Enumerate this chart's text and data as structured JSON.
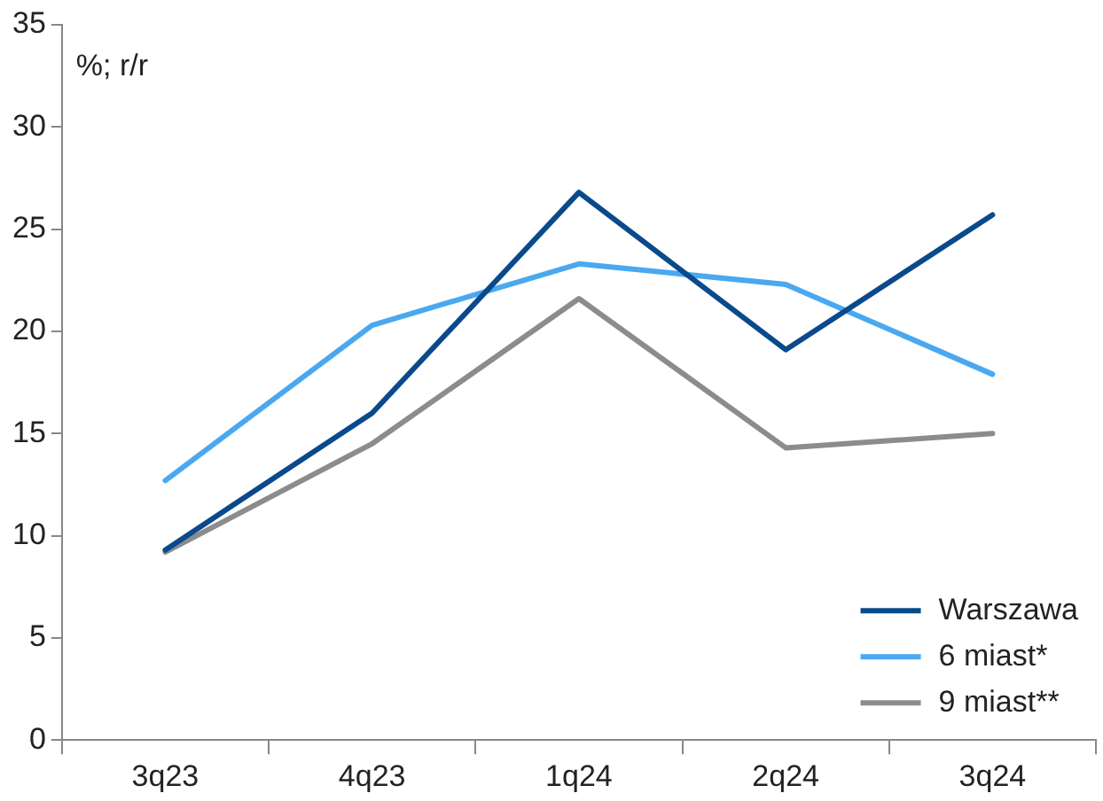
{
  "chart_data": {
    "type": "line",
    "ylabel": "%; r/r",
    "categories": [
      "3q23",
      "4q23",
      "1q24",
      "2q24",
      "3q24"
    ],
    "series": [
      {
        "name": "Warszawa",
        "color": "#0a4a8c",
        "values": [
          9.3,
          16.0,
          26.8,
          19.1,
          25.7
        ]
      },
      {
        "name": "6 miast*",
        "color": "#4aa8f0",
        "values": [
          12.7,
          20.3,
          23.3,
          22.3,
          17.9
        ]
      },
      {
        "name": "9 miast**",
        "color": "#8c8c8c",
        "values": [
          9.2,
          14.5,
          21.6,
          14.3,
          15.0
        ]
      }
    ],
    "ylim": [
      0,
      35
    ],
    "yticks": [
      0,
      5,
      10,
      15,
      20,
      25,
      30,
      35
    ],
    "grid": false,
    "legend": "bottom right",
    "marker": "none",
    "line_style": "solid"
  }
}
